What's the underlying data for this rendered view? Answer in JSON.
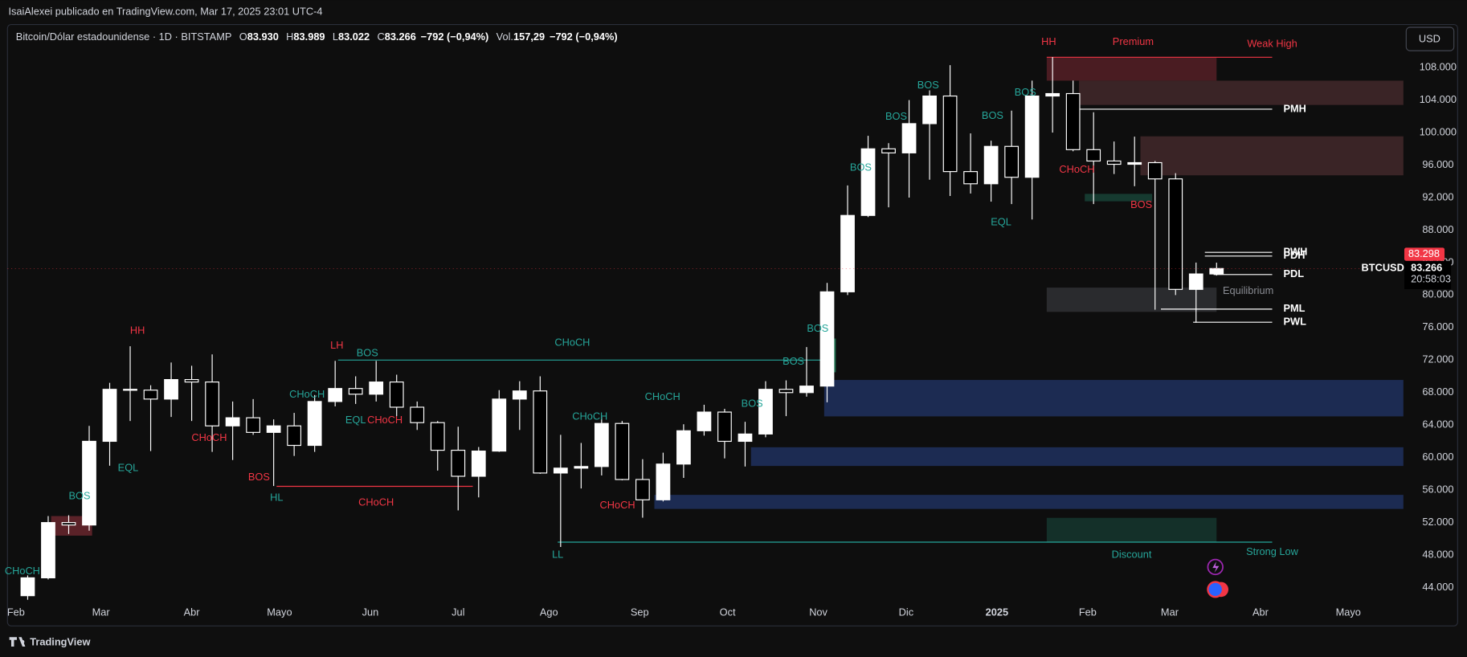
{
  "header": {
    "publisher": "IsaiAlexei publicado en TradingView.com, Mar 17, 2025 23:01 UTC-4"
  },
  "legend": {
    "symbol": "Bitcoin/Dólar estadounidense · 1D · BITSTAMP",
    "fields": [
      {
        "key": "O",
        "value": "83.930"
      },
      {
        "key": "H",
        "value": "83.989"
      },
      {
        "key": "L",
        "value": "83.022"
      },
      {
        "key": "C",
        "value": "83.266"
      },
      {
        "value": "−792 (−0,94%)"
      },
      {
        "key": "Vol.",
        "value": "157,29"
      },
      {
        "value": "−792 (−0,94%)"
      }
    ]
  },
  "currency_button": "USD",
  "footer": {
    "brand": "TradingView"
  },
  "chart_data": {
    "type": "candlestick",
    "up_color": "#ffffff",
    "down_color": "#000000",
    "grid": false,
    "xlim": [
      -2.9,
      473.8
    ],
    "xticks": [
      {
        "value": 0,
        "label": "Feb"
      },
      {
        "value": 29,
        "label": "Mar"
      },
      {
        "value": 60,
        "label": "Abr"
      },
      {
        "value": 90,
        "label": "Mayo"
      },
      {
        "value": 121,
        "label": "Jun"
      },
      {
        "value": 151,
        "label": "Jul"
      },
      {
        "value": 182,
        "label": "Ago"
      },
      {
        "value": 213,
        "label": "Sep"
      },
      {
        "value": 243,
        "label": "Oct"
      },
      {
        "value": 274,
        "label": "Nov"
      },
      {
        "value": 304,
        "label": "Dic"
      },
      {
        "value": 335,
        "label": "2025"
      },
      {
        "value": 366,
        "label": "Feb"
      },
      {
        "value": 394,
        "label": "Mar"
      },
      {
        "value": 425,
        "label": "Abr"
      },
      {
        "value": 455,
        "label": "Mayo"
      }
    ],
    "ylim": [
      42040,
      113070
    ],
    "yticks": [
      {
        "value": 44000,
        "label": "44.000"
      },
      {
        "value": 48000,
        "label": "48.000"
      },
      {
        "value": 52000,
        "label": "52.000"
      },
      {
        "value": 56000,
        "label": "56.000"
      },
      {
        "value": 60000,
        "label": "60.000"
      },
      {
        "value": 64000,
        "label": "64.000"
      },
      {
        "value": 68000,
        "label": "68.000"
      },
      {
        "value": 72000,
        "label": "72.000"
      },
      {
        "value": 76000,
        "label": "76.000"
      },
      {
        "value": 80000,
        "label": "80.000"
      },
      {
        "value": 84000,
        "label": "84.000"
      },
      {
        "value": 88000,
        "label": "88.000"
      },
      {
        "value": 92000,
        "label": "92.000"
      },
      {
        "value": 96000,
        "label": "96.000"
      },
      {
        "value": 100000,
        "label": "100.000"
      },
      {
        "value": 104000,
        "label": "104.000"
      },
      {
        "value": 108000,
        "label": "108.000"
      }
    ],
    "x": [
      4,
      11,
      18,
      25,
      32,
      39,
      46,
      53,
      60,
      67,
      74,
      81,
      88,
      95,
      102,
      109,
      116,
      123,
      130,
      137,
      144,
      151,
      158,
      165,
      172,
      179,
      186,
      193,
      200,
      207,
      214,
      221,
      228,
      235,
      242,
      249,
      256,
      263,
      270,
      277,
      284,
      291,
      298,
      305,
      312,
      319,
      326,
      333,
      340,
      347,
      354,
      361,
      368,
      375,
      382,
      389,
      396,
      403,
      410
    ],
    "open": [
      43000,
      45200,
      52000,
      51700,
      62000,
      68400,
      68300,
      67200,
      69600,
      69300,
      63900,
      64900,
      63100,
      63900,
      61500,
      66900,
      68500,
      67800,
      69300,
      66200,
      64300,
      60900,
      57700,
      60800,
      67200,
      68200,
      58100,
      58700,
      58900,
      64200,
      57300,
      54800,
      59200,
      63300,
      65600,
      62000,
      62900,
      68400,
      68000,
      68800,
      80400,
      89800,
      98000,
      97500,
      101100,
      104500,
      95200,
      93700,
      98300,
      94500,
      104500,
      104800,
      97900,
      96500,
      96100,
      96300,
      94300,
      80700,
      82600
    ],
    "high": [
      45500,
      52800,
      52900,
      63900,
      69200,
      73700,
      68900,
      71700,
      71300,
      72700,
      66900,
      67200,
      64700,
      65500,
      67700,
      71900,
      70000,
      71900,
      70200,
      66900,
      64500,
      63800,
      61300,
      68300,
      69400,
      70000,
      62800,
      61800,
      65000,
      64500,
      59800,
      60600,
      64100,
      66500,
      66000,
      64400,
      69400,
      69500,
      73600,
      81500,
      93500,
      99600,
      98700,
      104000,
      105200,
      108300,
      99900,
      99000,
      102700,
      106400,
      109300,
      106400,
      102500,
      98900,
      99500,
      96500,
      95000,
      84000,
      83989
    ],
    "low": [
      42500,
      45000,
      50600,
      51000,
      59000,
      64500,
      60800,
      65000,
      64500,
      60700,
      59700,
      62800,
      56500,
      60200,
      60700,
      66300,
      66600,
      66900,
      65100,
      63400,
      58400,
      53500,
      55100,
      60700,
      63400,
      58000,
      49000,
      56200,
      57800,
      57200,
      52600,
      54600,
      57500,
      62700,
      59900,
      58900,
      62500,
      65100,
      67500,
      66800,
      80000,
      89600,
      90800,
      92000,
      94200,
      92200,
      92500,
      91500,
      91200,
      89300,
      100000,
      97700,
      91200,
      94900,
      93400,
      78200,
      80000,
      76600,
      82400
    ],
    "close": [
      45200,
      52000,
      51700,
      62000,
      68400,
      68300,
      67200,
      69600,
      69300,
      63900,
      64900,
      63100,
      63900,
      61500,
      66900,
      68500,
      67800,
      69300,
      66200,
      64300,
      60900,
      57700,
      60800,
      67200,
      68200,
      58100,
      58700,
      58900,
      64200,
      57300,
      54800,
      59200,
      63300,
      65600,
      62000,
      62900,
      68400,
      68000,
      68800,
      80400,
      89800,
      98000,
      97500,
      101100,
      104500,
      95200,
      93700,
      98300,
      94500,
      104500,
      104800,
      97900,
      96500,
      96100,
      96300,
      94300,
      80700,
      82600,
      83266
    ],
    "zones": [
      {
        "x0": 352,
        "x1": 410,
        "y0": 106390,
        "y1": 109270,
        "color": "#4a1c22"
      },
      {
        "x0": 363,
        "x1": 474,
        "y0": 103400,
        "y1": 106390,
        "color": "#3a2426"
      },
      {
        "x0": 384,
        "x1": 474,
        "y0": 94740,
        "y1": 99540,
        "color": "#3a2426"
      },
      {
        "x0": 352,
        "x1": 410,
        "y0": 77930,
        "y1": 80920,
        "color": "#2a2b2e"
      },
      {
        "x0": 352,
        "x1": 410,
        "y0": 49590,
        "y1": 52580,
        "color": "#143029"
      },
      {
        "x0": 276,
        "x1": 474,
        "y0": 65070,
        "y1": 69550,
        "color": "#1c2b52"
      },
      {
        "x0": 251,
        "x1": 474,
        "y0": 58970,
        "y1": 61270,
        "color": "#1c2b52"
      },
      {
        "x0": 218,
        "x1": 474,
        "y0": 53680,
        "y1": 55410,
        "color": "#1c2b52"
      },
      {
        "x0": 12,
        "x1": 26,
        "y0": 50390,
        "y1": 52800,
        "color": "#5a2228"
      },
      {
        "x0": 365,
        "x1": 388,
        "y0": 91540,
        "y1": 92460,
        "color": "#163a30"
      },
      {
        "x0": 278,
        "x1": 280,
        "y0": 70500,
        "y1": 74650,
        "color": "#1d6b4c"
      }
    ],
    "levels": [
      {
        "x0": 352,
        "x1": 429,
        "y": 109270,
        "color": "#f23645"
      },
      {
        "x0": 185,
        "x1": 429,
        "y": 49590,
        "color": "#26a69a"
      },
      {
        "x0": 110,
        "x1": 279,
        "y": 72000,
        "color": "#26a69a"
      },
      {
        "x0": 89,
        "x1": 156,
        "y": 56460,
        "color": "#f23645"
      },
      {
        "x0": 363,
        "x1": 429,
        "y": 102880,
        "color": "#ffffff",
        "label": "PMH"
      },
      {
        "x0": 406,
        "x1": 429,
        "y": 85260,
        "color": "#ffffff",
        "label": "PWH"
      },
      {
        "x0": 406,
        "x1": 429,
        "y": 84800,
        "color": "#ffffff",
        "label": "PDH"
      },
      {
        "x0": 409,
        "x1": 429,
        "y": 82530,
        "color": "#ffffff",
        "label": "PDL"
      },
      {
        "x0": 391,
        "x1": 429,
        "y": 78270,
        "color": "#ffffff",
        "label": "PML"
      },
      {
        "x0": 402,
        "x1": 429,
        "y": 76660,
        "color": "#ffffff",
        "label": "PWL"
      }
    ],
    "annotations": [
      {
        "text": "CHoCH",
        "x": 2.2,
        "y": 45970,
        "color": "#26a69a"
      },
      {
        "text": "BOS",
        "x": 21.7,
        "y": 55190,
        "color": "#26a69a"
      },
      {
        "text": "EQL",
        "x": 38.3,
        "y": 58660,
        "color": "#26a69a"
      },
      {
        "text": "HH",
        "x": 41.5,
        "y": 75570,
        "color": "#f23645"
      },
      {
        "text": "CHoCH",
        "x": 66,
        "y": 62360,
        "color": "#f23645"
      },
      {
        "text": "BOS",
        "x": 83,
        "y": 57530,
        "color": "#f23645"
      },
      {
        "text": "HL",
        "x": 89,
        "y": 54990,
        "color": "#26a69a"
      },
      {
        "text": "LH",
        "x": 109.6,
        "y": 73730,
        "color": "#f23645"
      },
      {
        "text": "BOS",
        "x": 120,
        "y": 72800,
        "color": "#26a69a"
      },
      {
        "text": "CHoCH",
        "x": 99.4,
        "y": 67730,
        "color": "#26a69a"
      },
      {
        "text": "EQL",
        "x": 116,
        "y": 64530,
        "color": "#26a69a"
      },
      {
        "text": "CHoCH",
        "x": 126,
        "y": 64530,
        "color": "#f23645"
      },
      {
        "text": "CHoCH",
        "x": 123,
        "y": 54410,
        "color": "#f23645"
      },
      {
        "text": "CHoCH",
        "x": 190,
        "y": 74070,
        "color": "#26a69a"
      },
      {
        "text": "LL",
        "x": 185,
        "y": 48000,
        "color": "#26a69a"
      },
      {
        "text": "CHoCH",
        "x": 196,
        "y": 64990,
        "color": "#26a69a"
      },
      {
        "text": "CHoCH",
        "x": 220.8,
        "y": 67410,
        "color": "#26a69a"
      },
      {
        "text": "CHoCH",
        "x": 205.4,
        "y": 54070,
        "color": "#f23645"
      },
      {
        "text": "BOS",
        "x": 251.4,
        "y": 66600,
        "color": "#26a69a"
      },
      {
        "text": "BOS",
        "x": 265.5,
        "y": 71770,
        "color": "#26a69a"
      },
      {
        "text": "BOS",
        "x": 273.8,
        "y": 75800,
        "color": "#26a69a"
      },
      {
        "text": "BOS",
        "x": 288.5,
        "y": 95650,
        "color": "#26a69a"
      },
      {
        "text": "BOS",
        "x": 300.6,
        "y": 101900,
        "color": "#26a69a"
      },
      {
        "text": "BOS",
        "x": 311.5,
        "y": 105800,
        "color": "#26a69a"
      },
      {
        "text": "BOS",
        "x": 333.5,
        "y": 102000,
        "color": "#26a69a"
      },
      {
        "text": "BOS",
        "x": 344.7,
        "y": 104900,
        "color": "#26a69a"
      },
      {
        "text": "EQL",
        "x": 336.4,
        "y": 88920,
        "color": "#26a69a"
      },
      {
        "text": "HH",
        "x": 352.7,
        "y": 111110,
        "color": "#f23645"
      },
      {
        "text": "Premium",
        "x": 381.5,
        "y": 111110,
        "color": "#f23645"
      },
      {
        "text": "Weak High",
        "x": 429,
        "y": 110880,
        "color": "#f23645"
      },
      {
        "text": "CHoCH",
        "x": 362.3,
        "y": 95420,
        "color": "#f23645"
      },
      {
        "text": "BOS",
        "x": 384.3,
        "y": 91050,
        "color": "#f23645"
      },
      {
        "text": "Equilibrium",
        "x": 420.8,
        "y": 80480,
        "color": "#8a8c93"
      },
      {
        "text": "Discount",
        "x": 381,
        "y": 48000,
        "color": "#26a69a"
      },
      {
        "text": "Strong Low",
        "x": 429,
        "y": 48350,
        "color": "#26a69a"
      }
    ],
    "price_tag": {
      "value": 83298,
      "label": "83.298",
      "color": "#f23645"
    },
    "symbol_tag": {
      "name": "BTCUSD",
      "price": {
        "value": 83266,
        "label": "83.266"
      },
      "countdown": "20:58:03"
    }
  }
}
